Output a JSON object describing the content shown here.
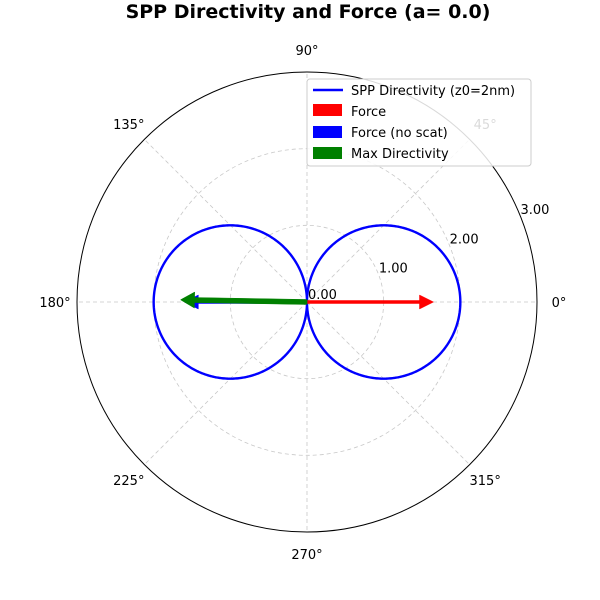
{
  "chart_data": {
    "type": "polar",
    "title": "SPP Directivity and Force (a= 0.0)",
    "rlim": [
      0,
      3.0
    ],
    "radial_ticks": [
      0.0,
      1.0,
      2.0,
      3.0
    ],
    "radial_tick_labels": [
      "0.00",
      "1.00",
      "2.00",
      "3.00"
    ],
    "angular_ticks_deg": [
      0,
      45,
      90,
      135,
      180,
      225,
      270,
      315
    ],
    "angular_tick_labels": [
      "0°",
      "45°",
      "90°",
      "135°",
      "180°",
      "225°",
      "270°",
      "315°"
    ],
    "grid": true,
    "series": [
      {
        "name": "SPP Directivity (z0=2nm)",
        "kind": "curve",
        "formula": "r = 2.0 * |cos(theta)|",
        "color": "#0000ff"
      },
      {
        "name": "Force",
        "kind": "arrow",
        "angle_deg": 0,
        "magnitude": 1.65,
        "color": "#ff0000"
      },
      {
        "name": "Force (no scat)",
        "kind": "arrow",
        "angle_deg": 180,
        "magnitude": 1.6,
        "color": "#0000ff"
      },
      {
        "name": "Max Directivity",
        "kind": "arrow",
        "angle_deg": 179,
        "magnitude": 1.65,
        "color": "#008000"
      }
    ],
    "legend": {
      "position": "upper-right",
      "entries": [
        {
          "label": "SPP Directivity (z0=2nm)",
          "style": "line",
          "color": "#0000ff"
        },
        {
          "label": "Force",
          "style": "patch",
          "color": "#ff0000"
        },
        {
          "label": "Force (no scat)",
          "style": "patch",
          "color": "#0000ff"
        },
        {
          "label": "Max Directivity",
          "style": "patch",
          "color": "#008000"
        }
      ]
    }
  }
}
